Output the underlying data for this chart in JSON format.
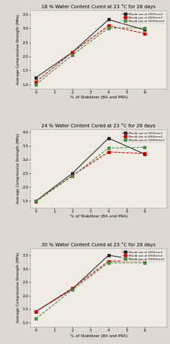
{
  "panels": [
    {
      "title": "18 % Water Content Cured at 23 °C for 28 days",
      "x": [
        0,
        2,
        4,
        6
      ],
      "series": [
        {
          "label": "Mould size of 2500mm2",
          "color": "#222222",
          "linestyle": "-",
          "marker": "s",
          "marker_color": "#222222",
          "values": [
            1.25,
            2.15,
            3.32,
            2.95
          ]
        },
        {
          "label": "Mould size of 4900mm2",
          "color": "#cc0000",
          "linestyle": "--",
          "marker": "s",
          "marker_color": "#cc0000",
          "values": [
            1.1,
            2.15,
            3.1,
            2.82
          ]
        },
        {
          "label": "Mould size of 10000mm2",
          "color": "#448844",
          "linestyle": "--",
          "marker": "s",
          "marker_color": "#448844",
          "values": [
            1.0,
            2.05,
            3.02,
            3.02
          ]
        }
      ],
      "ylim": [
        0.85,
        3.65
      ],
      "yticks": [
        1.0,
        1.5,
        2.0,
        2.5,
        3.0,
        3.5
      ],
      "xlabel": "% of Stabilizer (BA and PRA)",
      "ylabel": "Average Compressive Strength (MPa)"
    },
    {
      "title": "24 % Water Content Cured at 23 °C for 28 days",
      "x": [
        0,
        2,
        4,
        6
      ],
      "series": [
        {
          "label": "Mould size of 2500mm2",
          "color": "#222222",
          "linestyle": "-",
          "marker": "s",
          "marker_color": "#222222",
          "values": [
            1.5,
            2.5,
            3.78,
            3.2
          ]
        },
        {
          "label": "Mould size of 4900mm2",
          "color": "#cc0000",
          "linestyle": "--",
          "marker": "s",
          "marker_color": "#cc0000",
          "values": [
            1.48,
            2.42,
            3.28,
            3.22
          ]
        },
        {
          "label": "Mould size of 10000mm2",
          "color": "#448844",
          "linestyle": "--",
          "marker": "s",
          "marker_color": "#448844",
          "values": [
            1.5,
            2.4,
            3.42,
            3.45
          ]
        }
      ],
      "ylim": [
        1.25,
        4.1
      ],
      "yticks": [
        1.5,
        2.0,
        2.5,
        3.0,
        3.5,
        4.0
      ],
      "xlabel": "% of Stabilizer (BA and PRA)",
      "ylabel": "Average Compressive Strength (MPa)"
    },
    {
      "title": "30 % Water Content Cured at 23 °C for 28 days",
      "x": [
        0,
        2,
        4,
        6
      ],
      "series": [
        {
          "label": "Mould size of 2500mm2",
          "color": "#222222",
          "linestyle": "-",
          "marker": "s",
          "marker_color": "#222222",
          "values": [
            1.42,
            2.25,
            3.5,
            3.28
          ]
        },
        {
          "label": "Mould size of 4900mm2",
          "color": "#cc0000",
          "linestyle": "--",
          "marker": "s",
          "marker_color": "#cc0000",
          "values": [
            1.42,
            2.28,
            3.28,
            3.28
          ]
        },
        {
          "label": "Mould size of 10000mm2",
          "color": "#448844",
          "linestyle": "--",
          "marker": "s",
          "marker_color": "#448844",
          "values": [
            1.15,
            2.22,
            3.22,
            3.22
          ]
        }
      ],
      "ylim": [
        0.85,
        3.75
      ],
      "yticks": [
        1.0,
        1.5,
        2.0,
        2.5,
        3.0,
        3.5
      ],
      "xlabel": "% of Stabilizer (BA and PRA)",
      "ylabel": "Average Compressive Strength (MPa)"
    }
  ],
  "bg_color": "#ddd8d0",
  "plot_bg_color": "#f0ebe4",
  "fig_width": 2.47,
  "fig_height": 5.0,
  "dpi": 100
}
